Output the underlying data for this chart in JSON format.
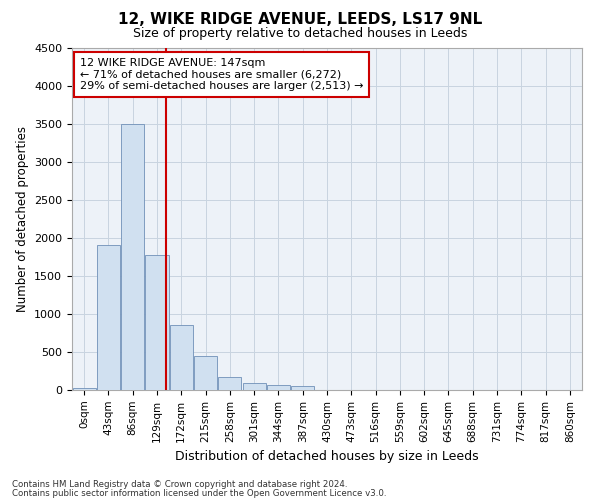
{
  "title1": "12, WIKE RIDGE AVENUE, LEEDS, LS17 9NL",
  "title2": "Size of property relative to detached houses in Leeds",
  "xlabel": "Distribution of detached houses by size in Leeds",
  "ylabel": "Number of detached properties",
  "bar_labels": [
    "0sqm",
    "43sqm",
    "86sqm",
    "129sqm",
    "172sqm",
    "215sqm",
    "258sqm",
    "301sqm",
    "344sqm",
    "387sqm",
    "430sqm",
    "473sqm",
    "516sqm",
    "559sqm",
    "602sqm",
    "645sqm",
    "688sqm",
    "731sqm",
    "774sqm",
    "817sqm",
    "860sqm"
  ],
  "bar_values": [
    30,
    1900,
    3500,
    1780,
    850,
    450,
    175,
    95,
    65,
    55,
    0,
    0,
    0,
    0,
    0,
    0,
    0,
    0,
    0,
    0,
    0
  ],
  "bar_color": "#d0e0f0",
  "bar_edge_color": "#7090b8",
  "vline_x": 3.35,
  "vline_color": "#cc0000",
  "ylim": [
    0,
    4500
  ],
  "yticks": [
    0,
    500,
    1000,
    1500,
    2000,
    2500,
    3000,
    3500,
    4000,
    4500
  ],
  "annotation_line1": "12 WIKE RIDGE AVENUE: 147sqm",
  "annotation_line2": "← 71% of detached houses are smaller (6,272)",
  "annotation_line3": "29% of semi-detached houses are larger (2,513) →",
  "annotation_box_color": "#cc0000",
  "footer1": "Contains HM Land Registry data © Crown copyright and database right 2024.",
  "footer2": "Contains public sector information licensed under the Open Government Licence v3.0.",
  "grid_color": "#c8d4e0",
  "bg_color": "#edf2f8"
}
